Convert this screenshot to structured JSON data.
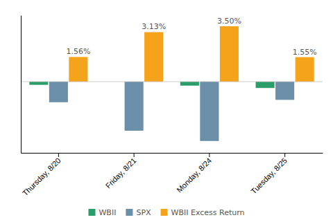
{
  "chart_data": {
    "type": "bar",
    "categories": [
      "Thursday, 8/20",
      "Friday, 8/21",
      "Monday, 8/24",
      "Tuesday, 8/25"
    ],
    "series": [
      {
        "name": "WBII",
        "color": "#2a9d6b",
        "values": [
          -0.2,
          0.0,
          -0.25,
          -0.4
        ]
      },
      {
        "name": "SPX",
        "color": "#6b8fa8",
        "values": [
          -1.3,
          -3.1,
          -3.75,
          -1.15
        ]
      },
      {
        "name": "WBII Excess Return",
        "color": "#f5a31a",
        "values": [
          1.56,
          3.13,
          3.5,
          1.55
        ],
        "value_labels": [
          "1.56%",
          "3.13%",
          "3.50%",
          "1.55%"
        ]
      }
    ],
    "ylim": [
      -4.5,
      4.2
    ],
    "yticks": [],
    "grid": false,
    "legend": "bottom",
    "tick_labels": "x"
  }
}
